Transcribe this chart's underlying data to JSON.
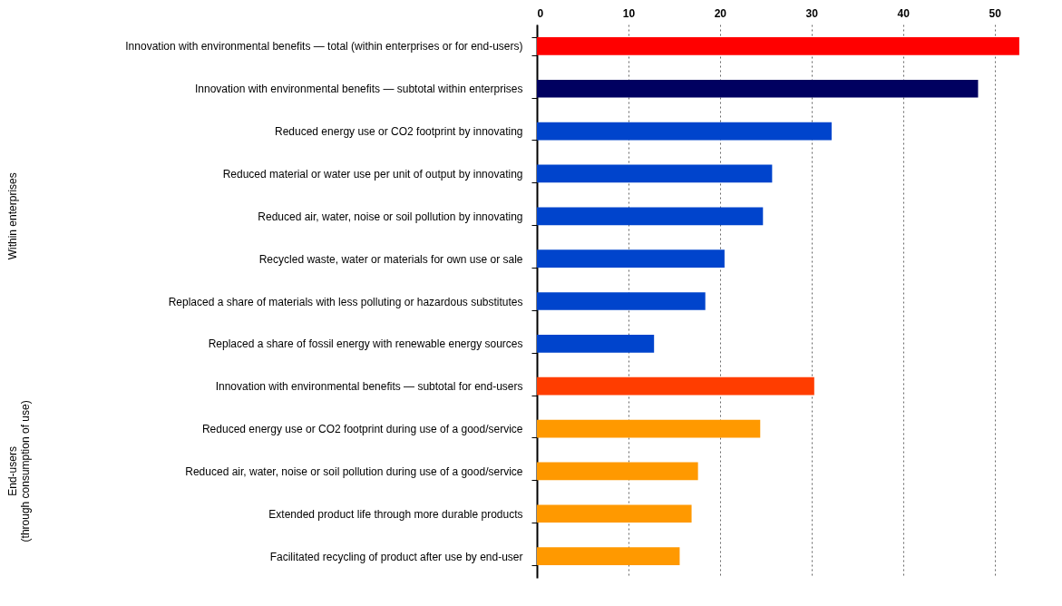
{
  "chart_data": {
    "type": "bar",
    "orientation": "horizontal",
    "categories": [
      "Innovation with environmental benefits — total (within enterprises or for end-users)",
      "Innovation with environmental benefits — subtotal within enterprises",
      "Reduced energy use or CO2 footprint by innovating",
      "Reduced material or water use per unit of output by innovating",
      "Reduced air, water, noise or soil pollution by innovating",
      "Recycled waste, water or materials for own use or sale",
      "Replaced a share of materials with less polluting or hazardous substitutes",
      "Replaced a share of fossil energy with renewable energy sources",
      "Innovation with environmental benefits — subtotal for end-users",
      "Reduced energy use or CO2 footprint during use of a good/service",
      "Reduced air, water, noise or soil pollution during use of a good/service",
      "Extended product life through more durable products",
      "Facilitated recycling of product after use by end-user"
    ],
    "values": [
      52.7,
      48.2,
      32.2,
      25.7,
      24.7,
      20.5,
      18.4,
      12.8,
      30.3,
      24.4,
      17.6,
      16.9,
      15.6
    ],
    "colors": [
      "#ff0000",
      "#000060",
      "#0044cc",
      "#0044cc",
      "#0044cc",
      "#0044cc",
      "#0044cc",
      "#0044cc",
      "#ff3d00",
      "#ff9900",
      "#ff9900",
      "#ff9900",
      "#ff9900"
    ],
    "xlim": [
      0,
      54
    ],
    "xticks": [
      0,
      10,
      20,
      30,
      40,
      50
    ],
    "grid": "x",
    "annotations": [
      "Within enterprises",
      "End-users\n(through consumption of use)"
    ]
  }
}
